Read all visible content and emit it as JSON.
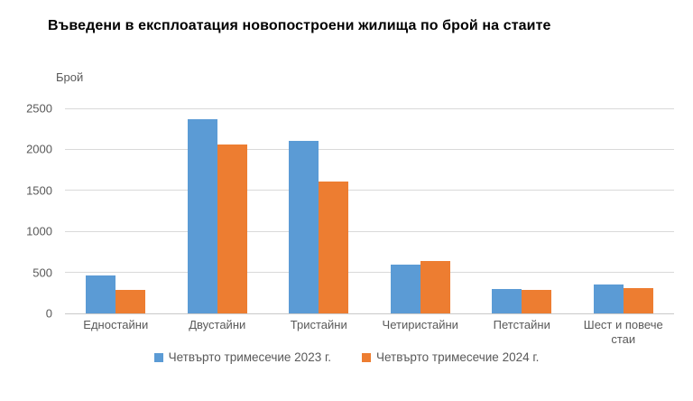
{
  "title": "Въведени в експлоатация новопостроени жилища по брой на стаите",
  "colors": {
    "series_2023": "#5B9BD5",
    "series_2024": "#ED7D31",
    "gridline": "#D9D9D9",
    "axis_text": "#595959",
    "title_text": "#000000"
  },
  "chart_data": {
    "type": "bar",
    "title": "Въведени в експлоатация новопостроени жилища по брой на стаите",
    "xlabel": "",
    "ylabel": "Брой",
    "ylim": [
      0,
      2500
    ],
    "yticks": [
      0,
      500,
      1000,
      1500,
      2000,
      2500
    ],
    "grid": true,
    "legend_position": "bottom",
    "categories": [
      "Едностайни",
      "Двустайни",
      "Тристайни",
      "Четиристайни",
      "Петстайни",
      "Шест и повече стаи"
    ],
    "series": [
      {
        "name": "Четвърто тримесечие 2023 г.",
        "color": "#5B9BD5",
        "values": [
          465,
          2370,
          2100,
          600,
          300,
          355
        ]
      },
      {
        "name": "Четвърто тримесечие 2024 г.",
        "color": "#ED7D31",
        "values": [
          290,
          2060,
          1610,
          640,
          285,
          310
        ]
      }
    ]
  }
}
